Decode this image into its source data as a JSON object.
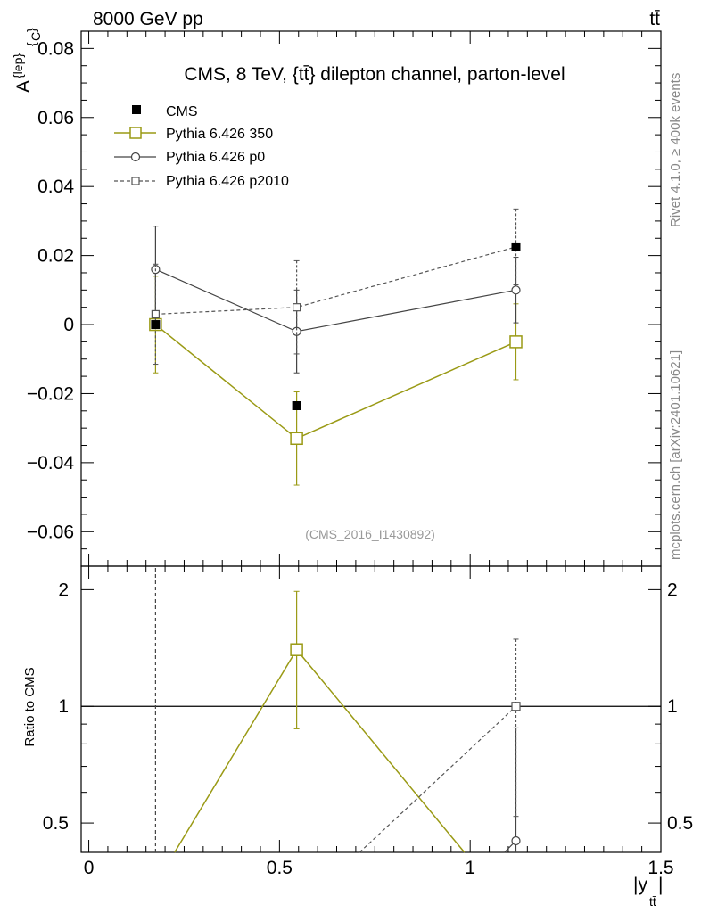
{
  "header": {
    "left": "8000 GeV pp",
    "right": "tt̄"
  },
  "side_labels": {
    "rivet": "Rivet 4.1.0, ≥ 400k events",
    "mcplots": "mcplots.cern.ch [arXiv:2401.10621]"
  },
  "chart_data": {
    "type": "line",
    "title": "CMS, 8 TeV, {tt̄} dilepton channel, parton-level",
    "analysis_id": "(CMS_2016_I1430892)",
    "ylabel": "A^{lep}_{C}",
    "xlabel": "|y_tt̄|",
    "xlim": [
      -0.02,
      1.5
    ],
    "ylim": [
      -0.07,
      0.085
    ],
    "x_ticks": [
      0,
      0.5,
      1,
      1.5
    ],
    "x_tick_labels": [
      "0",
      "0.5",
      "1",
      "1.5"
    ],
    "y_ticks": [
      0.08,
      0.06,
      0.04,
      0.02,
      0,
      -0.02,
      -0.04,
      -0.06
    ],
    "y_tick_labels": [
      "0.08",
      "0.06",
      "0.04",
      "0.02",
      "0",
      "−0.02",
      "−0.04",
      "−0.06"
    ],
    "legend": [
      "CMS",
      "Pythia 6.426 350",
      "Pythia 6.426 p0",
      "Pythia 6.426 p2010"
    ],
    "series": [
      {
        "name": "CMS",
        "style": "data",
        "color": "#000000",
        "x": [
          0.175,
          0.545,
          1.12
        ],
        "y": [
          0.0,
          -0.0235,
          0.0225
        ]
      },
      {
        "name": "Pythia 6.426 350",
        "style": "solid",
        "marker": "square",
        "color": "#9a9a15",
        "x": [
          0.175,
          0.545,
          1.12
        ],
        "y": [
          0.0,
          -0.033,
          -0.005
        ],
        "yerr": [
          0.014,
          0.0135,
          0.011
        ]
      },
      {
        "name": "Pythia 6.426 p0",
        "style": "solid",
        "marker": "circle",
        "color": "#444444",
        "x": [
          0.175,
          0.545,
          1.12
        ],
        "y": [
          0.016,
          -0.002,
          0.01
        ],
        "yerr": [
          0.0125,
          0.012,
          0.0095
        ]
      },
      {
        "name": "Pythia 6.426 p2010",
        "style": "dashed",
        "marker": "square-small",
        "color": "#555555",
        "x": [
          0.175,
          0.545,
          1.12
        ],
        "y": [
          0.003,
          0.005,
          0.0225
        ],
        "yerr": [
          0.0145,
          0.0135,
          0.011
        ]
      }
    ],
    "ratio": {
      "ylabel": "Ratio to CMS",
      "yscale": "log",
      "ylim": [
        0.42,
        2.3
      ],
      "y_ticks": [
        2,
        1,
        0.5
      ],
      "y_tick_labels": [
        "2",
        "1",
        "0.5"
      ],
      "series": [
        {
          "name": "Pythia 6.426 350",
          "x": [
            0.545
          ],
          "y": [
            1.4
          ],
          "ylo": [
            0.875
          ],
          "yhi": [
            1.98
          ]
        },
        {
          "name": "Pythia 6.426 p0",
          "x": [
            1.12
          ],
          "y": [
            0.45
          ],
          "ylo": [
            0.0
          ],
          "yhi": [
            0.88
          ]
        },
        {
          "name": "Pythia 6.426 p2010",
          "x": [
            1.12
          ],
          "y": [
            1.0
          ],
          "ylo": [
            0.52
          ],
          "yhi": [
            1.49
          ]
        }
      ],
      "lines": [
        {
          "name": "Pythia 6.426 350",
          "style": "solid",
          "color": "#9a9a15",
          "points": [
            [
              0.225,
              0.42
            ],
            [
              0.545,
              1.4
            ],
            [
              0.985,
              0.42
            ]
          ]
        },
        {
          "name": "Pythia 6.426 p2010",
          "style": "dashed",
          "color": "#555555",
          "points": [
            [
              0.71,
              0.42
            ],
            [
              1.12,
              1.0
            ]
          ]
        },
        {
          "name": "Pythia 6.426 p0",
          "style": "solid",
          "color": "#444444",
          "points": [
            [
              1.09,
              0.42
            ],
            [
              1.12,
              0.45
            ]
          ]
        },
        {
          "name": "CMS-first-bin",
          "style": "dashed",
          "color": "#444444",
          "points": [
            [
              0.175,
              0.42
            ],
            [
              0.175,
              2.3
            ]
          ]
        }
      ]
    }
  }
}
